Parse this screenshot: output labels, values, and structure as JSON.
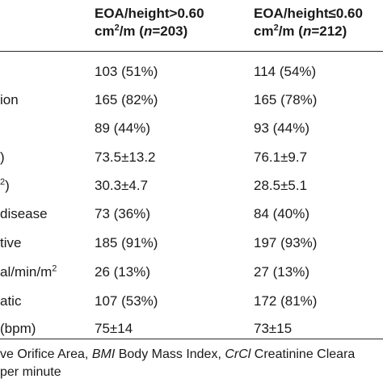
{
  "header": {
    "col1_line1": "EOA/height>0.60",
    "col1_unit": "cm",
    "col1_exp": "2",
    "col1_tail": "/m (",
    "col1_n": "n",
    "col1_count": "=203)",
    "col2_line1": "EOA/height≤0.60",
    "col2_unit": "cm",
    "col2_exp": "2",
    "col2_tail": "/m (",
    "col2_n": "n",
    "col2_count": "=212)"
  },
  "rows": [
    {
      "label": "",
      "label_exp": "",
      "v1": "103 (51%)",
      "v2": "114 (54%)"
    },
    {
      "label": "ion",
      "label_exp": "",
      "v1": "165 (82%)",
      "v2": "165 (78%)"
    },
    {
      "label": "",
      "label_exp": "",
      "v1": "89 (44%)",
      "v2": "93 (44%)"
    },
    {
      "label": ")",
      "label_exp": "",
      "v1": "73.5±13.2",
      "v2": "76.1±9.7"
    },
    {
      "label": "",
      "label_exp": "2",
      "label_after": ")",
      "v1": "30.3±4.7",
      "v2": "28.5±5.1"
    },
    {
      "label": "disease",
      "label_exp": "",
      "v1": "73 (36%)",
      "v2": "84 (40%)"
    },
    {
      "label": "tive",
      "label_exp": "",
      "v1": "185 (91%)",
      "v2": "197 (93%)"
    },
    {
      "label": "al/min/m",
      "label_exp": "2",
      "v1": "26 (13%)",
      "v2": "27 (13%)"
    },
    {
      "label": "atic",
      "label_exp": "",
      "v1": "107 (53%)",
      "v2": "172 (81%)"
    },
    {
      "label": "(bpm)",
      "label_exp": "",
      "v1": "75±14",
      "v2": "73±15"
    }
  ],
  "footnote": {
    "line1_pre": "ve Orifice Area, ",
    "bmi_abbr": "BMI",
    "bmi_text": " Body Mass Index, ",
    "crcl_abbr": "CrCl",
    "crcl_text": " Creatinine Cleara",
    "line2": "per minute"
  }
}
